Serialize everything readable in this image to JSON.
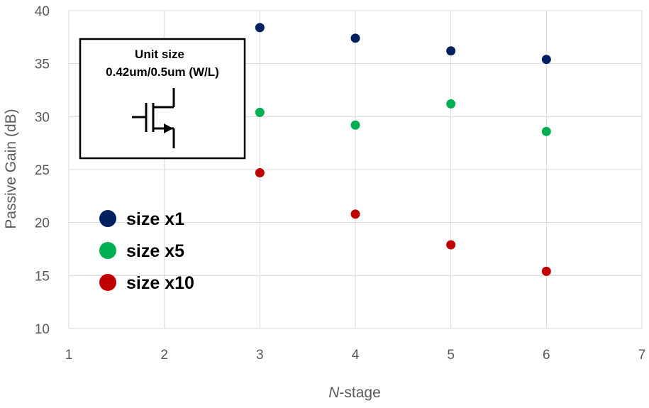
{
  "chart_data": {
    "type": "scatter",
    "xlabel_italic": "N",
    "xlabel_rest": "-stage",
    "ylabel": "Passive Gain (dB)",
    "xlim": [
      1,
      7
    ],
    "ylim": [
      10,
      40
    ],
    "x_ticks": [
      1,
      2,
      3,
      4,
      5,
      6,
      7
    ],
    "y_ticks": [
      10,
      15,
      20,
      25,
      30,
      35,
      40
    ],
    "grid": true,
    "legend_position": "left-middle",
    "series": [
      {
        "name": "size x1",
        "color": "#002060",
        "x": [
          3,
          4,
          5,
          6
        ],
        "y": [
          38.4,
          37.4,
          36.2,
          35.4
        ]
      },
      {
        "name": "size x5",
        "color": "#00b050",
        "x": [
          3,
          4,
          5,
          6
        ],
        "y": [
          30.4,
          29.2,
          31.2,
          28.6
        ]
      },
      {
        "name": "size x10",
        "color": "#c00000",
        "x": [
          3,
          4,
          5,
          6
        ],
        "y": [
          24.7,
          20.8,
          17.9,
          15.4
        ]
      }
    ],
    "inset": {
      "line1": "Unit size",
      "line2": "0.42um/0.5um (W/L)",
      "icon": "nmos-transistor-icon"
    }
  }
}
